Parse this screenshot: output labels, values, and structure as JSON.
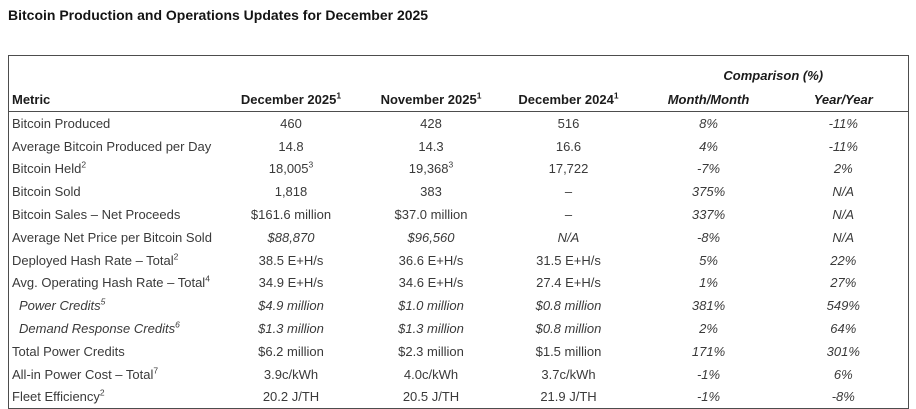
{
  "page": {
    "title": "Bitcoin Production and Operations Updates for December 2025"
  },
  "colors": {
    "background": "#ffffff",
    "title_text": "#141414",
    "header_text": "#1c1c1c",
    "body_text": "#3a3a3a",
    "border": "#4d4d4d"
  },
  "table": {
    "group_header": "Comparison (%)",
    "columns": [
      {
        "label": "Metric"
      },
      {
        "label": "December 2025",
        "sup": "1"
      },
      {
        "label": "November 2025",
        "sup": "1"
      },
      {
        "label": "December 2024",
        "sup": "1"
      },
      {
        "label": "Month/Month"
      },
      {
        "label": "Year/Year"
      }
    ],
    "rows": [
      {
        "label": "Bitcoin Produced",
        "values": [
          "460",
          "428",
          "516",
          "8%",
          "-11%"
        ]
      },
      {
        "label": "Average Bitcoin Produced per Day",
        "values": [
          "14.8",
          "14.3",
          "16.6",
          "4%",
          "-11%"
        ]
      },
      {
        "label": "Bitcoin Held",
        "label_sup": "2",
        "values": [
          {
            "text": "18,005",
            "sup": "3"
          },
          {
            "text": "19,368",
            "sup": "3"
          },
          "17,722",
          "-7%",
          "2%"
        ]
      },
      {
        "label": "Bitcoin Sold",
        "values": [
          "1,818",
          "383",
          "–",
          "375%",
          "N/A"
        ]
      },
      {
        "label": "Bitcoin Sales – Net Proceeds",
        "values": [
          "$161.6 million",
          "$37.0 million",
          "–",
          "337%",
          "N/A"
        ]
      },
      {
        "label": "Average Net Price per Bitcoin Sold",
        "values_italic": true,
        "values": [
          "$88,870",
          "$96,560",
          "N/A",
          "-8%",
          "N/A"
        ]
      },
      {
        "label": "Deployed Hash Rate – Total",
        "label_sup": "2",
        "values": [
          "38.5 E+H/s",
          "36.6 E+H/s",
          "31.5 E+H/s",
          "5%",
          "22%"
        ]
      },
      {
        "label": "Avg. Operating Hash Rate – Total",
        "label_sup": "4",
        "values": [
          "34.9 E+H/s",
          "34.6 E+H/s",
          "27.4 E+H/s",
          "1%",
          "27%"
        ]
      },
      {
        "label": "Power Credits",
        "label_sup": "5",
        "indent": true,
        "italic": true,
        "values": [
          "$4.9 million",
          "$1.0 million",
          "$0.8 million",
          "381%",
          "549%"
        ]
      },
      {
        "label": "Demand Response Credits",
        "label_sup": "6",
        "indent": true,
        "italic": true,
        "values": [
          "$1.3 million",
          "$1.3 million",
          "$0.8 million",
          "2%",
          "64%"
        ]
      },
      {
        "label": "Total Power Credits",
        "values": [
          "$6.2 million",
          "$2.3 million",
          "$1.5 million",
          "171%",
          "301%"
        ]
      },
      {
        "label": "All-in Power Cost – Total",
        "label_sup": "7",
        "values": [
          "3.9c/kWh",
          "4.0c/kWh",
          "3.7c/kWh",
          "-1%",
          "6%"
        ]
      },
      {
        "label": "Fleet Efficiency",
        "label_sup": "2",
        "values": [
          "20.2 J/TH",
          "20.5 J/TH",
          "21.9 J/TH",
          "-1%",
          "-8%"
        ]
      }
    ]
  }
}
